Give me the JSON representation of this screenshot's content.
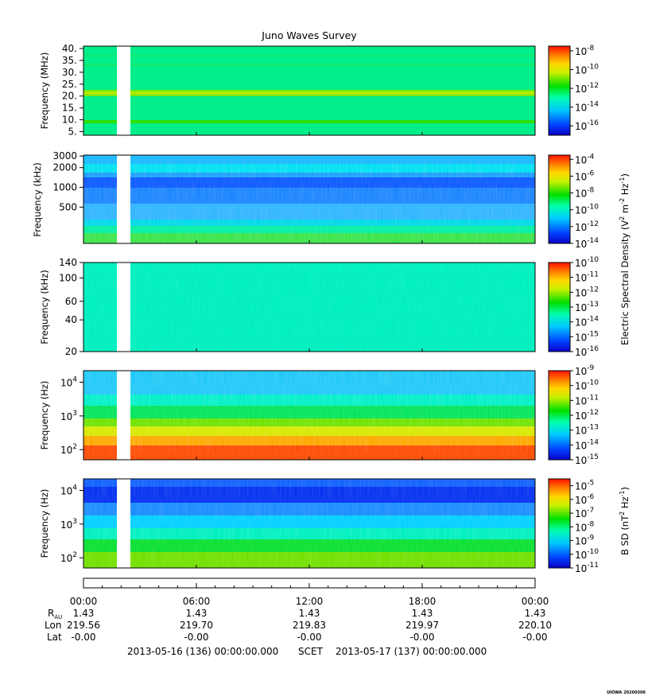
{
  "title": "Juno Waves Survey",
  "stamp": "UIOWA 20200306",
  "chart_data": [
    {
      "type": "heatmap",
      "ylabel": "Frequency (MHz)",
      "yscale": "linear",
      "ylim": [
        3.5,
        41
      ],
      "yticks": [
        {
          "v": 40,
          "t": "40."
        },
        {
          "v": 35,
          "t": "35."
        },
        {
          "v": 30,
          "t": "30."
        },
        {
          "v": 25,
          "t": "25."
        },
        {
          "v": 20,
          "t": "20."
        },
        {
          "v": 15,
          "t": "15."
        },
        {
          "v": 10,
          "t": "10."
        },
        {
          "v": 5,
          "t": "5."
        }
      ],
      "data_gap_hours": [
        1.75,
        2.45
      ],
      "colorbar": {
        "range_exp": [
          -17,
          -7.5
        ],
        "ticks": [
          {
            "v": -8,
            "base": "10",
            "exp": "-8"
          },
          {
            "v": -10,
            "base": "10",
            "exp": "-10"
          },
          {
            "v": -12,
            "base": "10",
            "exp": "-12"
          },
          {
            "v": -14,
            "base": "10",
            "exp": "-14"
          },
          {
            "v": -16,
            "base": "10",
            "exp": "-16"
          }
        ]
      }
    },
    {
      "type": "heatmap",
      "ylabel": "Frequency (kHz)",
      "yscale": "log",
      "ylim": [
        140,
        3100
      ],
      "yticks": [
        {
          "v": 3000,
          "t": "3000"
        },
        {
          "v": 2000,
          "t": "2000"
        },
        {
          "v": 1000,
          "t": "1000"
        },
        {
          "v": 500,
          "t": "500"
        }
      ],
      "data_gap_hours": [
        1.75,
        2.45
      ],
      "colorbar": {
        "range_exp": [
          -14,
          -3.5
        ],
        "ticks": [
          {
            "v": -4,
            "base": "10",
            "exp": "-4"
          },
          {
            "v": -6,
            "base": "10",
            "exp": "-6"
          },
          {
            "v": -8,
            "base": "10",
            "exp": "-8"
          },
          {
            "v": -10,
            "base": "10",
            "exp": "-10"
          },
          {
            "v": -12,
            "base": "10",
            "exp": "-12"
          },
          {
            "v": -14,
            "base": "10",
            "exp": "-14"
          }
        ]
      }
    },
    {
      "type": "heatmap",
      "ylabel": "Frequency (kHz)",
      "yscale": "log",
      "ylim": [
        20,
        140
      ],
      "yticks": [
        {
          "v": 140,
          "t": "140"
        },
        {
          "v": 100,
          "t": "100"
        },
        {
          "v": 60,
          "t": "60"
        },
        {
          "v": 40,
          "t": "40"
        },
        {
          "v": 20,
          "t": "20"
        }
      ],
      "data_gap_hours": [
        1.75,
        2.45
      ],
      "colorbar": {
        "range_exp": [
          -16,
          -10
        ],
        "ticks": [
          {
            "v": -10,
            "base": "10",
            "exp": "-10"
          },
          {
            "v": -11,
            "base": "10",
            "exp": "-11"
          },
          {
            "v": -12,
            "base": "10",
            "exp": "-12"
          },
          {
            "v": -13,
            "base": "10",
            "exp": "-13"
          },
          {
            "v": -14,
            "base": "10",
            "exp": "-14"
          },
          {
            "v": -15,
            "base": "10",
            "exp": "-15"
          },
          {
            "v": -16,
            "base": "10",
            "exp": "-16"
          }
        ]
      }
    },
    {
      "type": "heatmap",
      "ylabel": "Frequency (Hz)",
      "yscale": "log",
      "ylim": [
        50,
        22000
      ],
      "yticks": [
        {
          "v": 10000,
          "base": "10",
          "exp": "4"
        },
        {
          "v": 1000,
          "base": "10",
          "exp": "3"
        },
        {
          "v": 100,
          "base": "10",
          "exp": "2"
        }
      ],
      "data_gap_hours": [
        1.75,
        2.45
      ],
      "colorbar": {
        "range_exp": [
          -15,
          -9
        ],
        "ticks": [
          {
            "v": -9,
            "base": "10",
            "exp": "-9"
          },
          {
            "v": -10,
            "base": "10",
            "exp": "-10"
          },
          {
            "v": -11,
            "base": "10",
            "exp": "-11"
          },
          {
            "v": -12,
            "base": "10",
            "exp": "-12"
          },
          {
            "v": -13,
            "base": "10",
            "exp": "-13"
          },
          {
            "v": -14,
            "base": "10",
            "exp": "-14"
          },
          {
            "v": -15,
            "base": "10",
            "exp": "-15"
          }
        ]
      }
    },
    {
      "type": "heatmap",
      "ylabel": "Frequency (Hz)",
      "yscale": "log",
      "ylim": [
        50,
        22000
      ],
      "yticks": [
        {
          "v": 10000,
          "base": "10",
          "exp": "4"
        },
        {
          "v": 1000,
          "base": "10",
          "exp": "3"
        },
        {
          "v": 100,
          "base": "10",
          "exp": "2"
        }
      ],
      "data_gap_hours": [
        1.75,
        2.45
      ],
      "colorbar": {
        "range_exp": [
          -11,
          -4.5
        ],
        "ticks": [
          {
            "v": -5,
            "base": "10",
            "exp": "-5"
          },
          {
            "v": -6,
            "base": "10",
            "exp": "-6"
          },
          {
            "v": -7,
            "base": "10",
            "exp": "-7"
          },
          {
            "v": -8,
            "base": "10",
            "exp": "-8"
          },
          {
            "v": -9,
            "base": "10",
            "exp": "-9"
          },
          {
            "v": -10,
            "base": "10",
            "exp": "-10"
          },
          {
            "v": -11,
            "base": "10",
            "exp": "-11"
          }
        ]
      }
    }
  ],
  "colorbar_labels": {
    "electric": {
      "pre": "Electric Spectral Density (V",
      "s1": "2",
      "mid": " m",
      "s2": "-2",
      "mid2": " Hz",
      "s3": "-1",
      "post": ")"
    },
    "magnetic": {
      "pre": "B SD (nT",
      "s1": "2",
      "mid": " Hz",
      "s2": "-1",
      "post": ")"
    }
  },
  "time_axis": {
    "hours": [
      0,
      6,
      12,
      18,
      24
    ],
    "labels": [
      "00:00",
      "06:00",
      "12:00",
      "18:00",
      "00:00"
    ],
    "rau_label": {
      "main": "R",
      "sub": "AU"
    },
    "lon_label": "Lon",
    "lat_label": "Lat",
    "rau": [
      "1.43",
      "1.43",
      "1.43",
      "1.43",
      "1.43"
    ],
    "lon": [
      "219.56",
      "219.70",
      "219.83",
      "219.97",
      "220.10"
    ],
    "lat": [
      "-0.00",
      "-0.00",
      "-0.00",
      "-0.00",
      "-0.00"
    ]
  },
  "footer": {
    "start": "2013-05-16 (136) 00:00:00.000",
    "scet": "SCET",
    "end": "2013-05-17 (137) 00:00:00.000"
  }
}
